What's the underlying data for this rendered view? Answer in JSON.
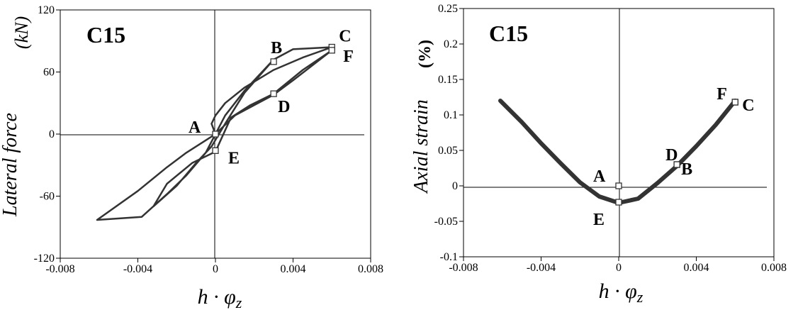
{
  "chart_data": [
    {
      "type": "line",
      "title": "C15",
      "ylabel": "Lateral force",
      "yunit": "(kN)",
      "xlabel": "h · φz",
      "xlim": [
        -0.008,
        0.008
      ],
      "ylim": [
        -120,
        120
      ],
      "xticks": [
        -0.008,
        -0.004,
        0,
        0.004,
        0.008
      ],
      "xtick_labels": [
        "-0.008",
        "-0.004",
        "0",
        "0.004",
        "0.008"
      ],
      "yticks": [
        -120,
        -60,
        0,
        60,
        120
      ],
      "ytick_labels": [
        "-120",
        "-60",
        "0",
        "60",
        "120"
      ],
      "series": [
        {
          "x": [
            0.0,
            -0.0005,
            -0.0015,
            -0.0025,
            -0.004,
            -0.0061,
            -0.0038,
            -0.0025,
            -0.0015,
            -0.0005,
            0.0005,
            0.0015,
            0.0025,
            0.003,
            0.004,
            0.006,
            0.0045,
            0.003,
            0.0015,
            0.0005,
            0.0,
            -0.0002,
            0.0,
            0.001,
            0.002,
            0.003,
            0.004,
            0.006,
            0.0045,
            0.003,
            0.0018,
            0.0008,
            0.0,
            -0.0012,
            -0.0025,
            -0.0032,
            -0.002,
            -0.001,
            -0.0002,
            0.0005,
            0.0015,
            0.003
          ],
          "y": [
            0,
            -6,
            -18,
            -32,
            -55,
            -83,
            -80,
            -58,
            -40,
            -18,
            18,
            42,
            62,
            72,
            82,
            84,
            74,
            62,
            45,
            30,
            18,
            10,
            0,
            18,
            28,
            38,
            52,
            81,
            62,
            39,
            28,
            16,
            -17,
            -28,
            -48,
            -70,
            -50,
            -28,
            -12,
            10,
            40,
            72
          ]
        }
      ],
      "points": [
        {
          "label": "A",
          "x": 0.0,
          "y": 0
        },
        {
          "label": "B",
          "x": 0.003,
          "y": 70
        },
        {
          "label": "C",
          "x": 0.006,
          "y": 84
        },
        {
          "label": "F",
          "x": 0.006,
          "y": 81
        },
        {
          "label": "D",
          "x": 0.003,
          "y": 39
        },
        {
          "label": "E",
          "x": 0.0,
          "y": -16
        }
      ]
    },
    {
      "type": "line",
      "title": "C15",
      "ylabel": "Axial strain",
      "yunit": "(%)",
      "xlabel": "h · φz",
      "xlim": [
        -0.008,
        0.008
      ],
      "ylim": [
        -0.1,
        0.25
      ],
      "xticks": [
        -0.008,
        -0.004,
        0,
        0.004,
        0.008
      ],
      "xtick_labels": [
        "-0.008",
        "-0.004",
        "0",
        "0.004",
        "0.008"
      ],
      "yticks": [
        -0.1,
        -0.05,
        0,
        0.05,
        0.1,
        0.15,
        0.2,
        0.25
      ],
      "ytick_labels": [
        "-0.1",
        "-0.05",
        "0",
        "0.05",
        "0.1",
        "0.15",
        "0.2",
        "0.25"
      ],
      "series": [
        {
          "x": [
            -0.0061,
            -0.005,
            -0.004,
            -0.003,
            -0.002,
            -0.001,
            0.0,
            0.001,
            0.002,
            0.003,
            0.004,
            0.005,
            0.006
          ],
          "y": [
            0.12,
            0.09,
            0.06,
            0.032,
            0.005,
            -0.015,
            -0.024,
            -0.018,
            0.004,
            0.028,
            0.056,
            0.086,
            0.12
          ]
        }
      ],
      "points": [
        {
          "label": "A",
          "x": 0.0,
          "y": 0.0
        },
        {
          "label": "E",
          "x": 0.0,
          "y": -0.023
        },
        {
          "label": "B",
          "x": 0.003,
          "y": 0.03
        },
        {
          "label": "D",
          "x": 0.003,
          "y": 0.03
        },
        {
          "label": "F",
          "x": 0.006,
          "y": 0.118
        },
        {
          "label": "C",
          "x": 0.006,
          "y": 0.118
        }
      ]
    }
  ]
}
